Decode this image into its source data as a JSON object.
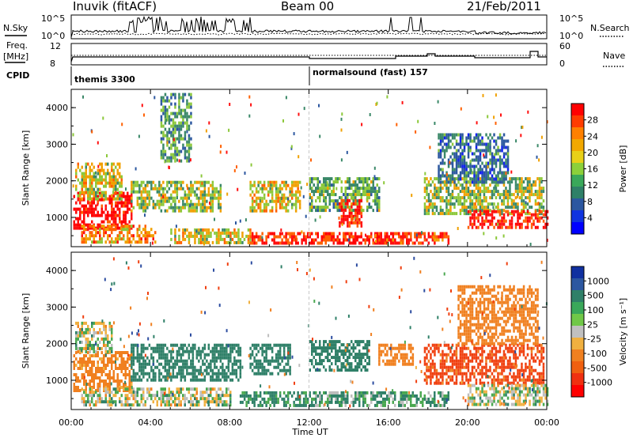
{
  "header": {
    "station": "Inuvik (fitACF)",
    "beam": "Beam 00",
    "date": "21/Feb/2011"
  },
  "top_panels": {
    "nsky_label": "N.Sky",
    "nsky_ticks": [
      "10^5",
      "10^0"
    ],
    "nsearch_label": "N.Search",
    "nsearch_ticks": [
      "10^5",
      "10^0"
    ],
    "freq_label_line1": "Freq.",
    "freq_label_line2": "[MHz]",
    "freq_ticks": [
      "12",
      "8"
    ],
    "nave_label": "Nave",
    "nave_ticks": [
      "60",
      "0"
    ],
    "cpid_label": "CPID",
    "cpid_segments": [
      {
        "label": "themis 3300",
        "start_hour": 0
      },
      {
        "label": "normalsound (fast) 157",
        "start_hour": 12
      }
    ]
  },
  "power_colorbar": {
    "title": "Power [dB]",
    "ticks": [
      "28",
      "24",
      "20",
      "16",
      "12",
      "8",
      "4"
    ],
    "colors": [
      "#ff0000",
      "#ff3c00",
      "#ff8000",
      "#f2a800",
      "#e8d018",
      "#8cd03a",
      "#3aa85a",
      "#2f8068",
      "#2c57a0",
      "#1034e0",
      "#0000ff"
    ]
  },
  "velocity_colorbar": {
    "title": "Velocity [m s⁻¹]",
    "ticks": [
      "1000",
      "500",
      "100",
      "25",
      "-25",
      "-100",
      "-500",
      "-1000"
    ],
    "colors": [
      "#1030a0",
      "#2c57a0",
      "#2f8068",
      "#3aa85a",
      "#70c848",
      "#c0c0c0",
      "#f0b040",
      "#f08020",
      "#f06010",
      "#f03010",
      "#ff0000"
    ]
  },
  "chart_data": [
    {
      "type": "heatmap",
      "name": "power",
      "title": "",
      "xlabel": "",
      "ylabel": "Slant Range [km]",
      "x_unit": "hour UT",
      "xlim": [
        0,
        24
      ],
      "ylim": [
        200,
        4500
      ],
      "yticks": [
        1000,
        2000,
        3000,
        4000
      ],
      "colorbar_label": "Power [dB]",
      "colorbar_ticks": [
        4,
        8,
        12,
        16,
        20,
        24,
        28
      ],
      "regions": [
        {
          "t0": 0.1,
          "t1": 3.0,
          "r0": 700,
          "r1": 1700,
          "value": 28
        },
        {
          "t0": 0.2,
          "t1": 2.5,
          "r0": 1500,
          "r1": 2500,
          "value": 16
        },
        {
          "t0": 0.5,
          "t1": 4.2,
          "r0": 300,
          "r1": 800,
          "value": 20
        },
        {
          "t0": 3.0,
          "t1": 7.5,
          "r0": 1200,
          "r1": 2000,
          "value": 14
        },
        {
          "t0": 4.5,
          "t1": 6.0,
          "r0": 2500,
          "r1": 4400,
          "value": 10
        },
        {
          "t0": 5.0,
          "t1": 9.0,
          "r0": 300,
          "r1": 700,
          "value": 16
        },
        {
          "t0": 9.0,
          "t1": 12.0,
          "r0": 300,
          "r1": 600,
          "value": 26
        },
        {
          "t0": 9.0,
          "t1": 11.5,
          "r0": 1200,
          "r1": 2000,
          "value": 16
        },
        {
          "t0": 12.0,
          "t1": 15.5,
          "r0": 1200,
          "r1": 2100,
          "value": 12
        },
        {
          "t0": 12.0,
          "t1": 17.0,
          "r0": 300,
          "r1": 600,
          "value": 26
        },
        {
          "t0": 13.5,
          "t1": 14.6,
          "r0": 800,
          "r1": 1500,
          "value": 26
        },
        {
          "t0": 15.5,
          "t1": 19.0,
          "r0": 300,
          "r1": 600,
          "value": 24
        },
        {
          "t0": 17.8,
          "t1": 23.8,
          "r0": 1100,
          "r1": 2100,
          "value": 14
        },
        {
          "t0": 18.5,
          "t1": 22.0,
          "r0": 2000,
          "r1": 3300,
          "value": 8
        },
        {
          "t0": 20.0,
          "t1": 24.0,
          "r0": 700,
          "r1": 1200,
          "value": 26
        }
      ]
    },
    {
      "type": "heatmap",
      "name": "velocity",
      "title": "",
      "xlabel": "Time UT",
      "ylabel": "Slant Range [km]",
      "x_unit": "hour UT",
      "xlim": [
        0,
        24
      ],
      "ylim": [
        200,
        4500
      ],
      "yticks": [
        1000,
        2000,
        3000,
        4000
      ],
      "xticks": [
        "00:00",
        "04:00",
        "08:00",
        "12:00",
        "16:00",
        "20:00",
        "00:00"
      ],
      "colorbar_label": "Velocity [m s⁻¹]",
      "colorbar_ticks": [
        -1000,
        -500,
        -100,
        -25,
        25,
        100,
        500,
        1000
      ],
      "regions": [
        {
          "t0": 0.1,
          "t1": 3.0,
          "r0": 700,
          "r1": 1800,
          "value": -200
        },
        {
          "t0": 0.2,
          "t1": 2.0,
          "r0": 1800,
          "r1": 2600,
          "value": 0
        },
        {
          "t0": 3.0,
          "t1": 8.5,
          "r0": 1000,
          "r1": 2000,
          "value": 300
        },
        {
          "t0": 0.5,
          "t1": 8.0,
          "r0": 300,
          "r1": 800,
          "value": 0
        },
        {
          "t0": 8.5,
          "t1": 12.0,
          "r0": 300,
          "r1": 700,
          "value": 150
        },
        {
          "t0": 9.0,
          "t1": 11.0,
          "r0": 1200,
          "r1": 2000,
          "value": 300
        },
        {
          "t0": 12.0,
          "t1": 15.0,
          "r0": 1300,
          "r1": 2100,
          "value": 300
        },
        {
          "t0": 12.0,
          "t1": 19.0,
          "r0": 300,
          "r1": 700,
          "value": 100
        },
        {
          "t0": 15.5,
          "t1": 17.2,
          "r0": 1400,
          "r1": 2000,
          "value": -300
        },
        {
          "t0": 17.8,
          "t1": 23.8,
          "r0": 900,
          "r1": 2000,
          "value": -600
        },
        {
          "t0": 19.5,
          "t1": 23.5,
          "r0": 2000,
          "r1": 3600,
          "value": -300
        },
        {
          "t0": 20.0,
          "t1": 24.0,
          "r0": 300,
          "r1": 900,
          "value": 0
        }
      ]
    }
  ]
}
